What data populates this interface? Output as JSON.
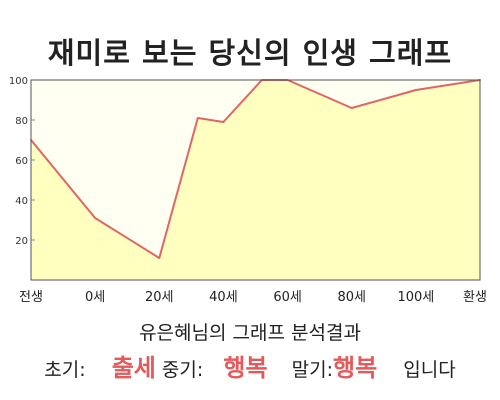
{
  "title": "재미로 보는 당신의 인생 그래프",
  "subtitle": "유은혜님의 그래프 분석결과",
  "result": {
    "early_label": "초기:",
    "early_value": "출세",
    "mid_label": "중기:",
    "mid_value": "행복",
    "late_label": "말기:",
    "late_value": "행복",
    "suffix": "입니다"
  },
  "colors": {
    "line": "#e06666",
    "area": "#ffffc0",
    "plot_bg": "#fffff2",
    "highlight": "#e45a5a"
  },
  "chart_data": {
    "type": "area",
    "title": "재미로 보는 당신의 인생 그래프",
    "xlabel": "",
    "ylabel": "",
    "categories": [
      "전생",
      "0세",
      "20세",
      "40세",
      "60세",
      "80세",
      "100세",
      "환생"
    ],
    "x": [
      0,
      1,
      2,
      2.6,
      3,
      3.6,
      4,
      5,
      6,
      7
    ],
    "values": [
      70,
      31,
      11,
      81,
      79,
      100,
      100,
      86,
      95,
      100
    ],
    "ylim": [
      0,
      100
    ],
    "yticks": [
      20,
      40,
      60,
      80,
      100
    ],
    "grid": false,
    "legend": "none"
  }
}
